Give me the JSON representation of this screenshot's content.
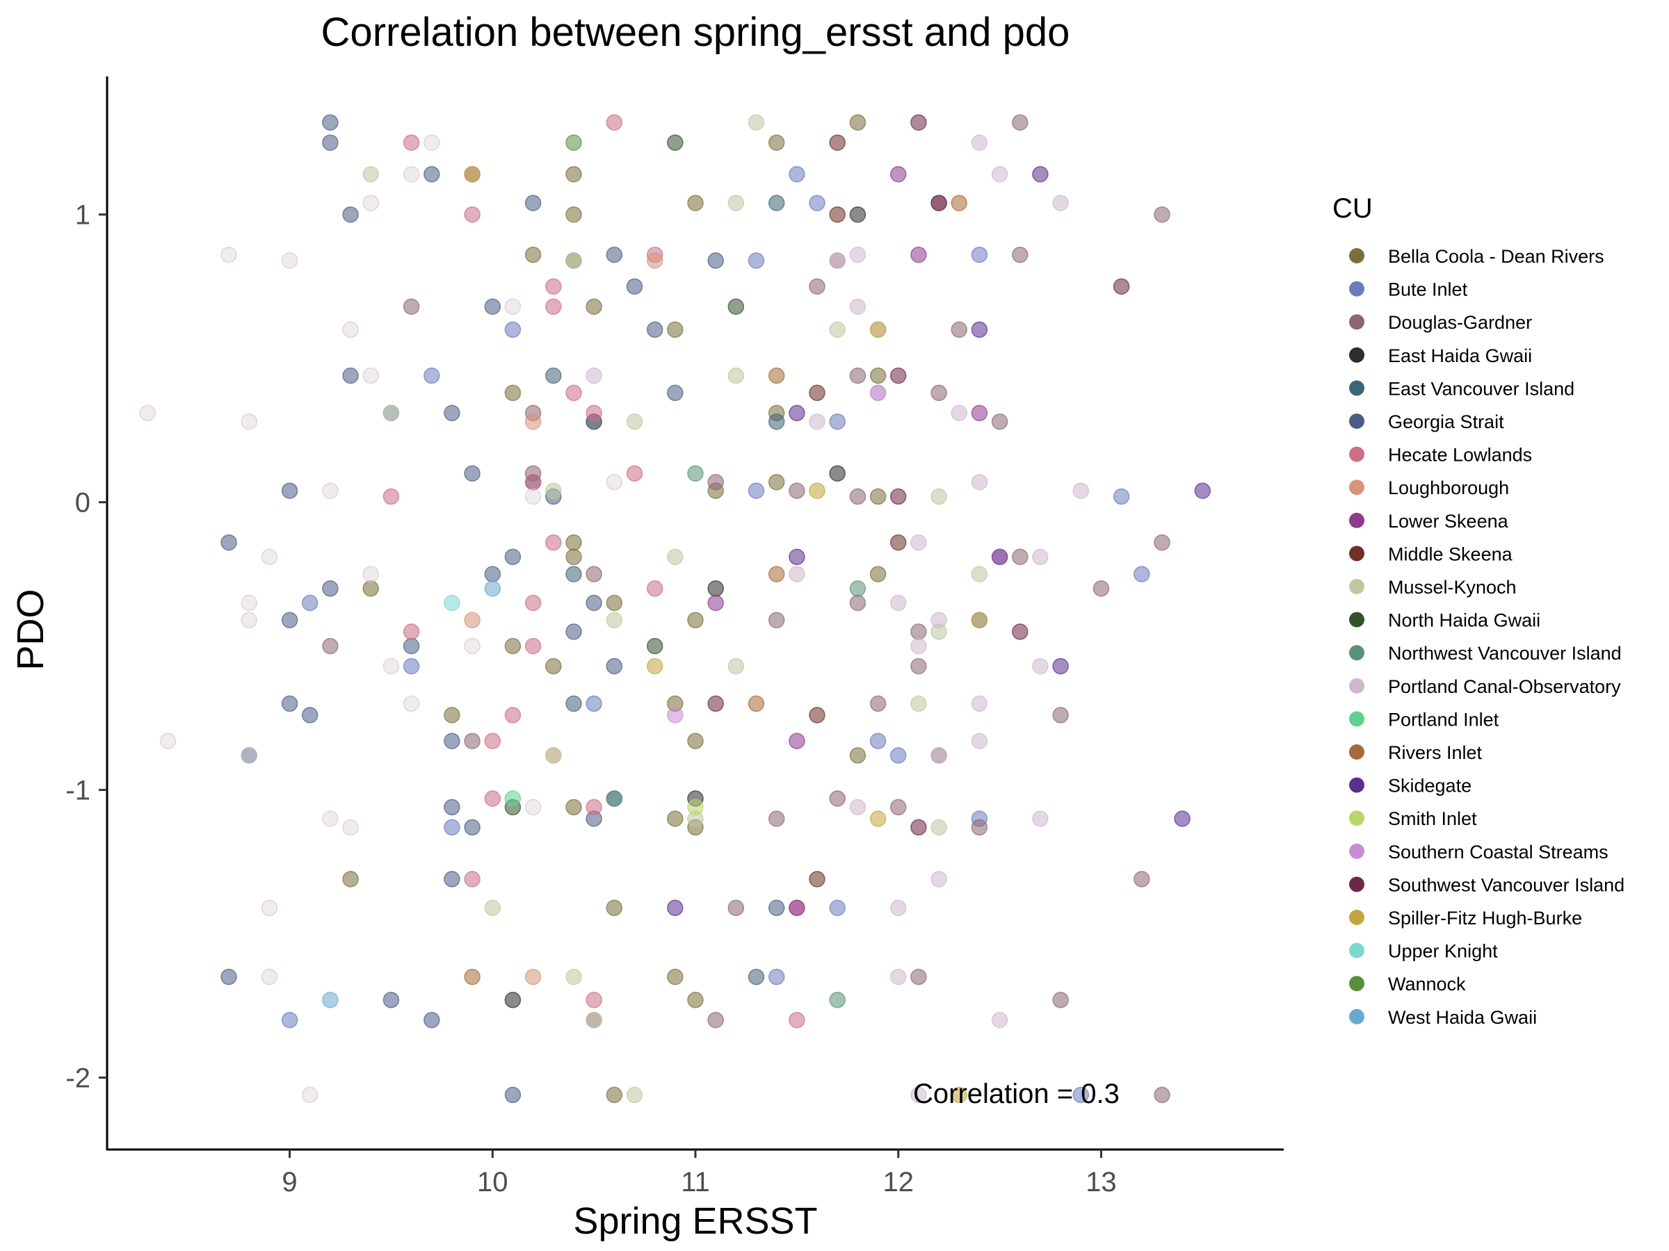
{
  "chart_data": {
    "type": "scatter",
    "title": "Correlation between spring_ersst and pdo",
    "xlabel": "Spring ERSST",
    "ylabel": "PDO",
    "xlim": [
      8.1,
      13.9
    ],
    "ylim": [
      -2.25,
      1.48
    ],
    "x_ticks": [
      9,
      10,
      11,
      12,
      13
    ],
    "y_ticks": [
      -2,
      -1,
      0,
      1
    ],
    "x_tick_labels": [
      "9",
      "10",
      "11",
      "12",
      "13"
    ],
    "y_tick_labels": [
      "-2",
      "-1",
      "0",
      "1"
    ],
    "grid": false,
    "legend_title": "CU",
    "legend_position": "right",
    "annotation": "Correlation =  0.3",
    "pdo_years": [
      1.32,
      1.25,
      1.14,
      1.04,
      1.0,
      0.86,
      0.84,
      0.75,
      0.68,
      0.6,
      0.44,
      0.38,
      0.31,
      0.28,
      0.1,
      0.07,
      0.04,
      0.02,
      -0.14,
      -0.19,
      -0.25,
      -0.3,
      -0.35,
      -0.41,
      -0.45,
      -0.5,
      -0.57,
      -0.7,
      -0.74,
      -0.83,
      -0.88,
      -1.03,
      -1.06,
      -1.1,
      -1.13,
      -1.31,
      -1.41,
      -1.65,
      -1.73,
      -1.8,
      -2.06
    ],
    "series": [
      {
        "name": "Bella Coola - Dean Rivers",
        "color": "#7a6f3a",
        "x": [
          11.8,
          11.9,
          11.0,
          11.9,
          10.9,
          11.0,
          11.9,
          10.9,
          10.5,
          11.8,
          10.4,
          11.0,
          10.6,
          11.1,
          10.9,
          10.9,
          10.3,
          10.4,
          10.4,
          10.6,
          11.4,
          11.0,
          10.2,
          10.6,
          10.5,
          11.4,
          10.4,
          10.5,
          10.1,
          11.4,
          10.4,
          9.3,
          10.1,
          9.8,
          10.4,
          9.4,
          11.0
        ]
      },
      {
        "name": "Bute Inlet",
        "color": "#6b7bbf",
        "x": [
          13.1,
          9.8,
          9.7,
          10.5,
          11.6,
          13.2,
          11.4,
          11.7,
          12.0,
          11.3,
          12.4,
          12.9,
          11.3,
          12.4,
          10.1,
          9.6,
          11.5,
          12.5,
          11.7,
          9.5,
          11.9,
          12.4,
          9.1,
          9.0
        ]
      },
      {
        "name": "Douglas-Gardner",
        "color": "#8c6670",
        "x": [
          13.3,
          13.2,
          12.2,
          12.8,
          13.3,
          13.0,
          12.8,
          10.2,
          11.7,
          11.6,
          12.1,
          12.6,
          11.8,
          12.4,
          11.8,
          11.9,
          12.2,
          10.5,
          12.1,
          12.5,
          12.2,
          11.7,
          11.4,
          13.3,
          11.5,
          11.4,
          12.3,
          12.1,
          9.9,
          12.6,
          11.2,
          10.2,
          9.9,
          12.6,
          11.8,
          11.1,
          11.1,
          12.0,
          9.6,
          9.2
        ]
      },
      {
        "name": "East Haida Gwaii",
        "color": "#2f2c2a",
        "x": [
          11.8,
          11.1,
          10.1,
          11.7,
          11.0
        ]
      },
      {
        "name": "East Vancouver Island",
        "color": "#3e6575",
        "x": [
          10.3,
          10.4,
          11.4,
          10.4,
          11.3,
          11.4
        ]
      },
      {
        "name": "Georgia Strait",
        "color": "#4a5c86",
        "x": [
          10.5,
          10.8,
          10.6,
          9.7,
          10.1,
          11.4,
          9.8,
          9.8,
          10.6,
          10.5,
          9.7,
          10.2,
          9.8,
          10.0,
          9.6,
          9.2,
          8.7,
          9.8,
          10.9,
          9.1,
          9.3,
          9.2,
          9.5,
          9.9,
          10.6,
          10.7,
          10.4,
          9.2,
          10.3,
          9.9,
          9.3,
          9.0,
          10.2,
          10.0,
          8.7,
          10.5,
          8.8,
          11.1,
          9.0,
          10.1,
          9.0
        ]
      },
      {
        "name": "Hecate Lowlands",
        "color": "#cc6e86",
        "x": [
          11.5,
          10.5,
          10.0,
          10.8,
          10.2,
          11.5,
          10.2,
          10.5,
          10.3,
          10.2,
          9.6,
          10.3,
          9.9,
          10.4,
          10.1,
          9.9,
          10.8,
          10.5,
          10.7,
          10.0,
          10.3,
          9.6,
          10.6,
          9.5
        ]
      },
      {
        "name": "Loughborough",
        "color": "#d69478",
        "x": [
          10.2,
          10.2,
          10.3,
          10.8,
          9.9
        ]
      },
      {
        "name": "Lower Skeena",
        "color": "#8e3a8f",
        "x": [
          12.0,
          12.5,
          11.5,
          12.4,
          11.5,
          12.1,
          11.1
        ]
      },
      {
        "name": "Middle Skeena",
        "color": "#6e3027",
        "x": [
          11.7,
          12.0,
          11.6,
          11.6,
          11.6,
          11.7
        ]
      },
      {
        "name": "Mussel-Kynoch",
        "color": "#bfc7a0",
        "x": [
          12.2,
          11.3,
          12.2,
          12.2,
          11.2,
          12.1,
          11.2,
          12.4,
          10.4,
          10.7,
          10.3,
          10.4,
          10.6,
          10.7,
          10.3,
          11.0,
          11.7,
          11.2,
          9.4,
          10.9,
          10.0,
          9.5
        ]
      },
      {
        "name": "North Haida Gwaii",
        "color": "#33522b",
        "x": [
          10.1,
          11.2,
          10.8,
          10.9
        ]
      },
      {
        "name": "Northwest Vancouver Island",
        "color": "#5a9176",
        "x": [
          11.8,
          11.7,
          11.0,
          10.6
        ]
      },
      {
        "name": "Portland Canal-Observatory",
        "color": "#cdb8cd",
        "x": [
          10.5,
          12.4,
          12.8,
          11.5,
          12.0,
          11.6,
          12.2,
          11.7,
          12.2,
          12.1,
          12.9,
          12.7,
          11.9,
          12.7,
          12.5,
          12.7,
          12.0,
          12.3,
          12.4,
          11.8,
          12.0,
          12.5,
          12.4,
          11.8,
          11.8,
          12.1,
          12.4,
          12.1,
          12.2,
          11.9
        ]
      },
      {
        "name": "Portland Inlet",
        "color": "#5fd18f",
        "x": [
          10.1
        ]
      },
      {
        "name": "Rivers Inlet",
        "color": "#a66a36",
        "x": [
          11.4,
          11.3,
          12.3,
          11.4,
          9.9
        ]
      },
      {
        "name": "Skidegate",
        "color": "#5a2f8f",
        "x": [
          13.5,
          13.4,
          12.4,
          12.8,
          12.7,
          11.5,
          10.9,
          11.5
        ]
      },
      {
        "name": "Smith Inlet",
        "color": "#b8d66a",
        "x": [
          11.0
        ]
      },
      {
        "name": "Southern Coastal Streams",
        "color": "#c98bd6",
        "x": [
          11.9,
          10.9
        ]
      },
      {
        "name": "Southwest Vancouver Island",
        "color": "#6e2747",
        "x": [
          13.1,
          12.6,
          12.1,
          12.0,
          12.1,
          12.0,
          11.1,
          12.2
        ]
      },
      {
        "name": "Spiller-Fitz Hugh-Burke",
        "color": "#c2a53d",
        "x": [
          12.4,
          12.3,
          11.6,
          11.9,
          11.9,
          10.8,
          9.9
        ]
      },
      {
        "name": "Upper Knight",
        "color": "#7ad8d0",
        "x": [
          9.8
        ]
      },
      {
        "name": "Wannock",
        "color": "#5a8f3a",
        "x": [
          10.4
        ]
      },
      {
        "name": "West Haida Gwaii",
        "color": "#6aa9cf",
        "x": [
          10.0,
          9.2
        ]
      },
      {
        "name": "",
        "color": "#d5c6d0",
        "x": [
          10.2,
          9.3,
          9.4,
          9.6,
          9.4,
          9.4,
          8.9,
          8.8,
          8.8,
          9.0,
          8.8,
          9.1,
          9.2,
          9.2,
          9.3,
          9.5,
          9.6,
          8.9,
          8.9,
          8.3,
          8.4,
          8.7,
          8.8,
          10.5,
          10.6,
          10.2,
          10.1,
          9.9,
          9.7
        ]
      }
    ]
  }
}
